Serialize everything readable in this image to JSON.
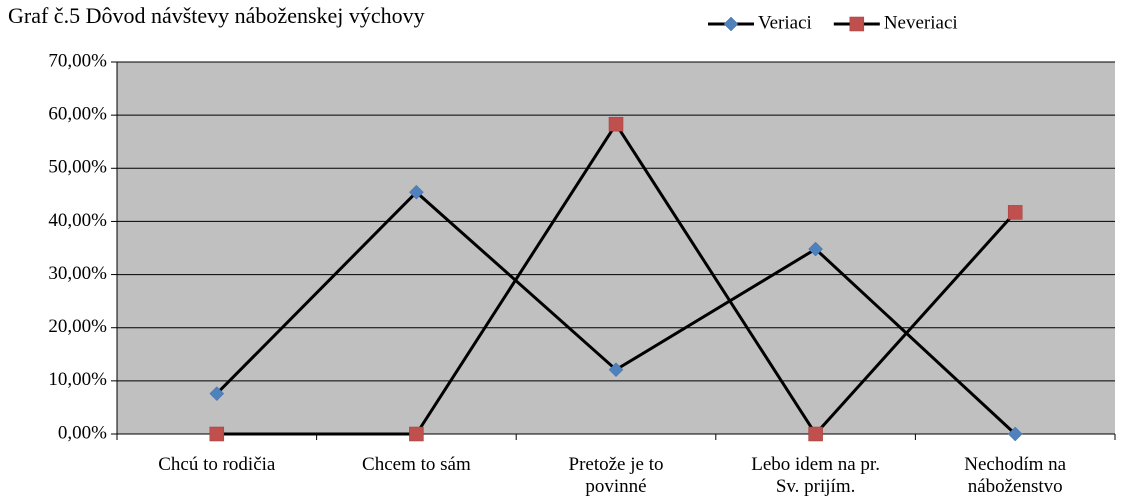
{
  "chart_data": {
    "type": "line",
    "title": "Graf č.5 Dôvod návštevy náboženskej výchovy",
    "categories": [
      "Chcú to rodičia",
      "Chcem to sám",
      "Pretože je to povinné",
      "Lebo idem na pr. Sv. prijím.",
      "Nechodím na náboženstvo"
    ],
    "series": [
      {
        "name": "Veriaci",
        "color": "#4f81bd",
        "marker": "diamond",
        "values": [
          7.6,
          45.5,
          12.1,
          34.8,
          0
        ]
      },
      {
        "name": "Neveriaci",
        "color": "#c0504d",
        "marker": "square",
        "values": [
          0,
          0,
          58.3,
          0,
          41.7
        ]
      }
    ],
    "ylim": [
      0,
      70
    ],
    "yticks": [
      {
        "value": 0,
        "label": "0,00%"
      },
      {
        "value": 10,
        "label": "10,00%"
      },
      {
        "value": 20,
        "label": "20,00%"
      },
      {
        "value": 30,
        "label": "30,00%"
      },
      {
        "value": 40,
        "label": "40,00%"
      },
      {
        "value": 50,
        "label": "50,00%"
      },
      {
        "value": 60,
        "label": "60,00%"
      },
      {
        "value": 70,
        "label": "70,00%"
      }
    ],
    "grid": true,
    "legend": "top-right",
    "line_color": "#000000",
    "plot_background": "#c0c0c0"
  }
}
